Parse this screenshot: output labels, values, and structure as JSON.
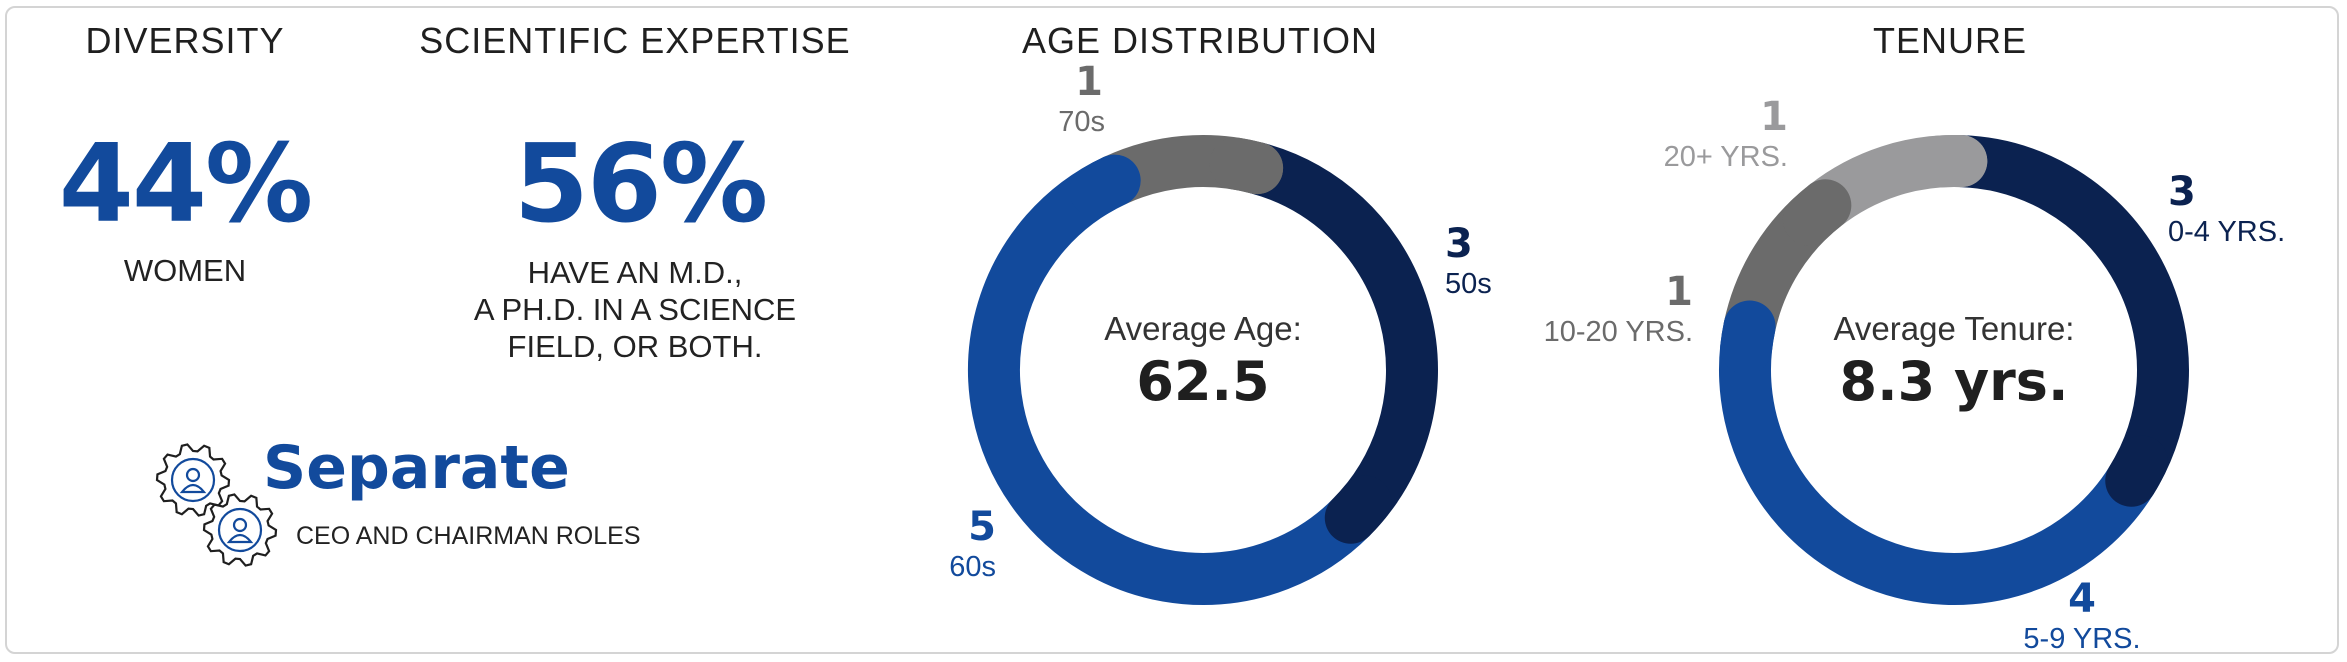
{
  "diversity": {
    "heading": "DIVERSITY",
    "value": "44%",
    "label": "WOMEN"
  },
  "expertise": {
    "heading": "SCIENTIFIC EXPERTISE",
    "value": "56%",
    "lines": [
      "HAVE AN M.D.,",
      "A PH.D. IN A SCIENCE",
      "FIELD, OR BOTH."
    ]
  },
  "roles": {
    "title": "Separate",
    "subtitle": "CEO AND CHAIRMAN ROLES",
    "icon": "gears-people-icon"
  },
  "chart_data": [
    {
      "type": "donut",
      "title": "AGE DISTRIBUTION",
      "center_label": "Average Age:",
      "center_value": "62.5",
      "slices": [
        {
          "label": "50s",
          "value": 3,
          "color": "#0b2250"
        },
        {
          "label": "60s",
          "value": 5,
          "color": "#124a9c"
        },
        {
          "label": "70s",
          "value": 1,
          "color": "#6b6b6b"
        }
      ]
    },
    {
      "type": "donut",
      "title": "TENURE",
      "center_label": "Average Tenure:",
      "center_value": "8.3 yrs.",
      "slices": [
        {
          "label": "0-4 YRS.",
          "value": 3,
          "color": "#0b2250"
        },
        {
          "label": "5-9 YRS.",
          "value": 4,
          "color": "#124a9c"
        },
        {
          "label": "10-20 YRS.",
          "value": 1,
          "color": "#6b6b6b"
        },
        {
          "label": "20+ YRS.",
          "value": 1,
          "color": "#9a9a9c"
        }
      ]
    }
  ]
}
